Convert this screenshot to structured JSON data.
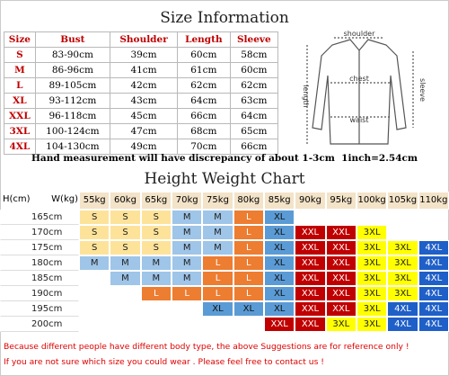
{
  "size_info": {
    "title": "Size Information",
    "columns": [
      "Size",
      "Bust",
      "Shoulder",
      "Length",
      "Sleeve"
    ],
    "rows": [
      [
        "S",
        "83-90cm",
        "39cm",
        "60cm",
        "58cm"
      ],
      [
        "M",
        "86-96cm",
        "41cm",
        "61cm",
        "60cm"
      ],
      [
        "L",
        "89-105cm",
        "42cm",
        "62cm",
        "62cm"
      ],
      [
        "XL",
        "93-112cm",
        "43cm",
        "64cm",
        "63cm"
      ],
      [
        "XXL",
        "96-118cm",
        "45cm",
        "66cm",
        "64cm"
      ],
      [
        "3XL",
        "100-124cm",
        "47cm",
        "68cm",
        "65cm"
      ],
      [
        "4XL",
        "104-130cm",
        "49cm",
        "70cm",
        "66cm"
      ]
    ]
  },
  "diagram": {
    "shoulder": "shoulder",
    "chest": "chest",
    "length": "length",
    "waist": "waist",
    "sleeve": "sleeve"
  },
  "note": "Hand measurement will have discrepancy of about 1-3cm  1inch=2.54cm",
  "height_weight": {
    "title": "Height Weight Chart",
    "corner_h": "H(cm)",
    "corner_w": "W(kg)",
    "weights": [
      "55kg",
      "60kg",
      "65kg",
      "70kg",
      "75kg",
      "80kg",
      "85kg",
      "90kg",
      "95kg",
      "100kg",
      "105kg",
      "110kg"
    ],
    "rows": [
      {
        "height": "165cm",
        "sizes": [
          "S",
          "S",
          "S",
          "M",
          "M",
          "L",
          "XL",
          null,
          null,
          null,
          null,
          null
        ]
      },
      {
        "height": "170cm",
        "sizes": [
          "S",
          "S",
          "S",
          "M",
          "M",
          "L",
          "XL",
          "XXL",
          "XXL",
          "3XL",
          null,
          null
        ]
      },
      {
        "height": "175cm",
        "sizes": [
          "S",
          "S",
          "S",
          "M",
          "M",
          "L",
          "XL",
          "XXL",
          "XXL",
          "3XL",
          "3XL",
          "4XL"
        ]
      },
      {
        "height": "180cm",
        "sizes": [
          "M",
          "M",
          "M",
          "M",
          "L",
          "L",
          "XL",
          "XXL",
          "XXL",
          "3XL",
          "3XL",
          "4XL"
        ]
      },
      {
        "height": "185cm",
        "sizes": [
          null,
          "M",
          "M",
          "M",
          "L",
          "L",
          "XL",
          "XXL",
          "XXL",
          "3XL",
          "3XL",
          "4XL"
        ]
      },
      {
        "height": "190cm",
        "sizes": [
          null,
          null,
          "L",
          "L",
          "L",
          "L",
          "XL",
          "XXL",
          "XXL",
          "3XL",
          "3XL",
          "4XL"
        ]
      },
      {
        "height": "195cm",
        "sizes": [
          null,
          null,
          null,
          null,
          "XL",
          "XL",
          "XL",
          "XXL",
          "XXL",
          "3XL",
          "4XL",
          "4XL"
        ]
      },
      {
        "height": "200cm",
        "sizes": [
          null,
          null,
          null,
          null,
          null,
          null,
          "XXL",
          "XXL",
          "3XL",
          "3XL",
          "4XL",
          "4XL"
        ]
      }
    ]
  },
  "footer": [
    "Because different people have different body type, the above Suggestions are for reference only !",
    "If you are not sure which size you could wear . Please feel free to contact us !"
  ]
}
